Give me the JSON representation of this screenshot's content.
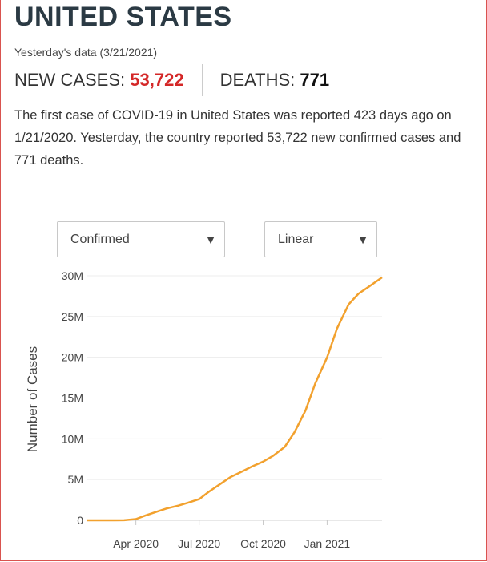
{
  "header": {
    "country": "UNITED STATES",
    "subtitle": "Yesterday's data (3/21/2021)"
  },
  "stats": {
    "new_cases_label": "NEW CASES:",
    "new_cases_value": "53,722",
    "deaths_label": "DEATHS:",
    "deaths_value": "771"
  },
  "summary": {
    "part1": "The first case of ",
    "disease": "COVID-19",
    "part2": " in ",
    "country": "United States",
    "part3": " was reported 423 days ago on 1/21/2020. Yesterday, the country reported 53,722 new confirmed cases and 771 deaths."
  },
  "controls": {
    "metric_select": "Confirmed",
    "scale_select": "Linear"
  },
  "colors": {
    "line": "#f2a12e",
    "new_cases": "#d42727"
  },
  "chart_data": {
    "type": "line",
    "ylabel": "Number of Cases",
    "y_ticks": [
      0,
      5000000,
      10000000,
      15000000,
      20000000,
      25000000,
      30000000
    ],
    "y_tick_labels": [
      "0",
      "5M",
      "10M",
      "15M",
      "20M",
      "25M",
      "30M"
    ],
    "ylim": [
      0,
      30000000
    ],
    "x_tick_labels": [
      "Apr 2020",
      "Jul 2020",
      "Oct 2020",
      "Jan 2021"
    ],
    "x_tick_dates": [
      "2020-04-01",
      "2020-07-01",
      "2020-10-01",
      "2021-01-01"
    ],
    "xlim": [
      "2020-01-21",
      "2021-03-21"
    ],
    "grid": true,
    "legend": "none",
    "series": [
      {
        "x": [
          "2020-01-21",
          "2020-03-01",
          "2020-03-15",
          "2020-04-01",
          "2020-04-15",
          "2020-05-01",
          "2020-05-15",
          "2020-06-01",
          "2020-06-15",
          "2020-07-01",
          "2020-07-15",
          "2020-08-01",
          "2020-08-15",
          "2020-09-01",
          "2020-09-15",
          "2020-10-01",
          "2020-10-15",
          "2020-11-01",
          "2020-11-15",
          "2020-12-01",
          "2020-12-15",
          "2021-01-01",
          "2021-01-15",
          "2021-02-01",
          "2021-02-15",
          "2021-03-01",
          "2021-03-21"
        ],
        "values": [
          0,
          0,
          10000,
          150000,
          600000,
          1050000,
          1450000,
          1800000,
          2150000,
          2600000,
          3500000,
          4500000,
          5300000,
          6000000,
          6600000,
          7200000,
          7900000,
          9000000,
          10800000,
          13500000,
          16800000,
          20000000,
          23500000,
          26500000,
          27800000,
          28600000,
          29800000
        ]
      }
    ]
  }
}
